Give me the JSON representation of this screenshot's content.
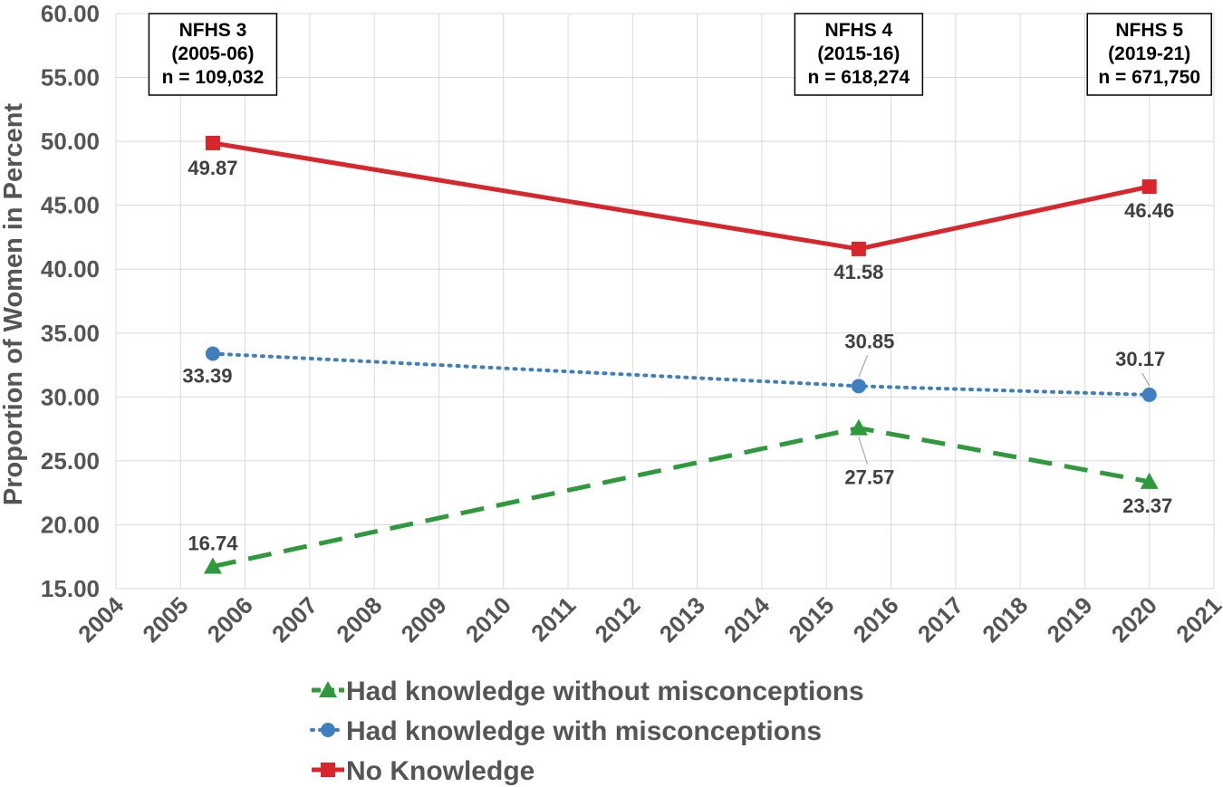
{
  "chart_data": {
    "type": "line",
    "title": "",
    "xlabel": "",
    "ylabel": "Proportion of Women in Percent",
    "xlim": [
      2004,
      2021
    ],
    "ylim": [
      15,
      60
    ],
    "grid": true,
    "legend_position": "bottom",
    "x_ticks": [
      "2004",
      "2005",
      "2006",
      "2007",
      "2008",
      "2009",
      "2010",
      "2011",
      "2012",
      "2013",
      "2014",
      "2015",
      "2016",
      "2017",
      "2018",
      "2019",
      "2020",
      "2021"
    ],
    "y_ticks": [
      "15.00",
      "20.00",
      "25.00",
      "30.00",
      "35.00",
      "40.00",
      "45.00",
      "50.00",
      "55.00",
      "60.00"
    ],
    "series": [
      {
        "name": "Had knowledge without misconceptions",
        "color": "#2e9a3b",
        "marker": "triangle",
        "line_style": "dashed",
        "x": [
          2005.5,
          2015.5,
          2020
        ],
        "values": [
          16.74,
          27.57,
          23.37
        ],
        "labels": [
          "16.74",
          "27.57",
          "23.37"
        ]
      },
      {
        "name": "Had knowledge with misconceptions",
        "color": "#3f7fbf",
        "marker": "circle",
        "line_style": "dotted",
        "x": [
          2005.5,
          2015.5,
          2020
        ],
        "values": [
          33.39,
          30.85,
          30.17
        ],
        "labels": [
          "33.39",
          "30.85",
          "30.17"
        ]
      },
      {
        "name": "No Knowledge",
        "color": "#d9262c",
        "marker": "square",
        "line_style": "solid",
        "x": [
          2005.5,
          2015.5,
          2020
        ],
        "values": [
          49.87,
          41.58,
          46.46
        ],
        "labels": [
          "49.87",
          "41.58",
          "46.46"
        ]
      }
    ],
    "annotations": [
      {
        "x": 2005.5,
        "lines": [
          "NFHS 3",
          "(2005-06)",
          "n = 109,032"
        ]
      },
      {
        "x": 2015.5,
        "lines": [
          "NFHS 4",
          "(2015-16)",
          "n = 618,274"
        ]
      },
      {
        "x": 2020,
        "lines": [
          "NFHS 5",
          "(2019-21)",
          "n = 671,750"
        ]
      }
    ]
  }
}
